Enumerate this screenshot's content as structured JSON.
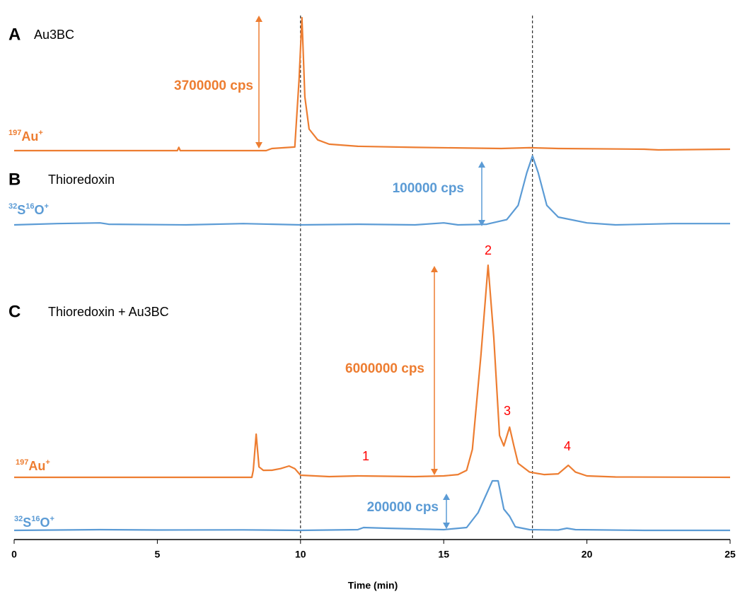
{
  "chart_data": {
    "type": "line",
    "xlabel": "Time (min)",
    "xlim": [
      0,
      25
    ],
    "xticks": [
      0,
      5,
      10,
      15,
      20,
      25
    ],
    "vlines": [
      10,
      18.1
    ],
    "panels": [
      {
        "letter": "A",
        "title": "Au3BC"
      },
      {
        "letter": "B",
        "title": "Thioredoxin"
      },
      {
        "letter": "C",
        "title": "Thioredoxin + Au3BC"
      }
    ],
    "series": [
      {
        "name": [
          "197",
          "Au",
          "+"
        ],
        "color": "#ed7d31",
        "scale_bar": {
          "value": 3700000,
          "label": "3700000 cps"
        },
        "x": [
          0,
          3,
          5.7,
          5.75,
          5.8,
          8.8,
          9.0,
          9.8,
          9.95,
          10.05,
          10.15,
          10.3,
          10.6,
          11,
          12,
          14,
          17,
          18,
          19,
          22,
          22.5,
          25
        ],
        "values": [
          0,
          0,
          0,
          90000,
          0,
          0,
          60000,
          100000,
          2000000,
          3700000,
          1500000,
          600000,
          300000,
          180000,
          120000,
          90000,
          60000,
          80000,
          60000,
          40000,
          20000,
          40000
        ]
      },
      {
        "name": [
          "32",
          "S",
          "16",
          "O",
          "+"
        ],
        "color": "#5b9bd5",
        "scale_bar": {
          "value": 100000,
          "label": "100000 cps"
        },
        "x": [
          0,
          1.5,
          3,
          3.3,
          6,
          8,
          10,
          12,
          14,
          15,
          15.5,
          16.5,
          17.2,
          17.6,
          17.9,
          18.1,
          18.3,
          18.6,
          19,
          20,
          21,
          23,
          25
        ],
        "values": [
          0,
          2000,
          3000,
          1000,
          0,
          2000,
          0,
          1000,
          0,
          3000,
          0,
          1000,
          8000,
          30000,
          80000,
          106000,
          80000,
          30000,
          12000,
          3000,
          0,
          2000,
          2000
        ]
      },
      {
        "name": [
          "197",
          "Au",
          "+"
        ],
        "color": "#ed7d31",
        "scale_bar": {
          "value": 6000000,
          "label": "6000000 cps"
        },
        "x": [
          0,
          8.3,
          8.35,
          8.45,
          8.55,
          8.7,
          9.0,
          9.3,
          9.6,
          9.8,
          10,
          11,
          12,
          14,
          15,
          15.5,
          15.8,
          16,
          16.3,
          16.55,
          16.75,
          16.95,
          17.1,
          17.3,
          17.45,
          17.6,
          18,
          18.5,
          19,
          19.35,
          19.6,
          20,
          21,
          25
        ],
        "values": [
          0,
          0,
          200000,
          1237000,
          300000,
          200000,
          203000,
          250000,
          324000,
          250000,
          60000,
          20000,
          40000,
          20000,
          40000,
          80000,
          200000,
          800000,
          3500000,
          6080000,
          4000000,
          1200000,
          900000,
          1440000,
          900000,
          400000,
          150000,
          80000,
          100000,
          345000,
          150000,
          40000,
          10000,
          0
        ]
      },
      {
        "name": [
          "32",
          "S",
          "16",
          "O",
          "+"
        ],
        "color": "#5b9bd5",
        "scale_bar": {
          "value": 200000,
          "label": "200000 cps"
        },
        "x": [
          0,
          3,
          5,
          8,
          10,
          12,
          12.2,
          13,
          14,
          15,
          15.8,
          16.2,
          16.7,
          16.9,
          17.1,
          17.3,
          17.5,
          18,
          19,
          19.3,
          19.6,
          22,
          25
        ],
        "values": [
          0,
          4000,
          2000,
          3000,
          0,
          4000,
          16000,
          12000,
          8000,
          4000,
          16000,
          100000,
          280000,
          280000,
          120000,
          80000,
          20000,
          4000,
          2000,
          12000,
          4000,
          0,
          0
        ]
      }
    ],
    "peak_labels": [
      "1",
      "2",
      "3",
      "4"
    ]
  }
}
